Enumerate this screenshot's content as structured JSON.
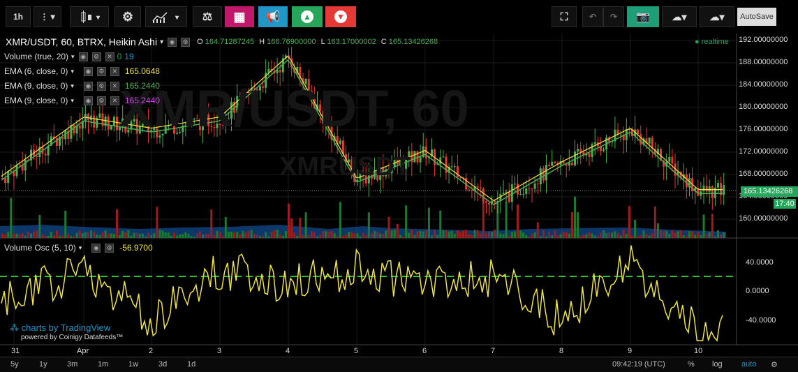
{
  "toolbar": {
    "interval": "1h",
    "autosave": "AutoSave",
    "colors": {
      "pink": "#c2186b",
      "blue": "#2196c9",
      "green": "#26a65b",
      "red": "#e53935",
      "snapshot": "#1e9e78"
    }
  },
  "legend": {
    "symbol": "XMR/USDT, 60, BTRX, Heikin Ashi",
    "o_label": "O",
    "o": "164.71287245",
    "h_label": "H",
    "h": "166.76900000",
    "l_label": "L",
    "l": "163.17000002",
    "c_label": "C",
    "c": "165.13426268",
    "realtime": "realtime",
    "volume": {
      "label": "Volume (true, 20)",
      "v1": "0",
      "v2": "19"
    },
    "ema1": {
      "label": "EMA (6, close, 0)",
      "value": "165.0648",
      "color": "#f0e442"
    },
    "ema2": {
      "label": "EMA (9, close, 0)",
      "value": "165.2440",
      "color": "#4caf50"
    },
    "ema3": {
      "label": "EMA (9, close, 0)",
      "value": "165.2440",
      "color": "#e040fb"
    },
    "osc": {
      "label": "Volume Osc (5, 10)",
      "value": "-56.9700",
      "color": "#f0e442"
    }
  },
  "watermark": {
    "big": "XMR/USDT, 60",
    "small": "XMRUSDT"
  },
  "y_axis": [
    "192.00000000",
    "188.00000000",
    "184.00000000",
    "180.00000000",
    "176.00000000",
    "172.00000000",
    "168.00000000",
    "164.00000000",
    "160.00000000"
  ],
  "current_price": "165.13426268",
  "countdown": "17:40",
  "osc_axis": [
    "40.0000",
    "0.0000",
    "-40.0000"
  ],
  "x_axis": [
    "31",
    "Apr",
    "2",
    "3",
    "4",
    "5",
    "6",
    "7",
    "8",
    "9",
    "10"
  ],
  "branding": {
    "line1": "charts by TradingView",
    "line2": "powered by Coinigy Datafeeds™"
  },
  "ranges": [
    "5y",
    "1y",
    "3m",
    "1m",
    "1w",
    "3d",
    "1d"
  ],
  "footer": {
    "time": "09:42:19 (UTC)",
    "pct": "%",
    "log": "log",
    "auto": "auto"
  },
  "chart_data": {
    "type": "line",
    "title": "XMR/USDT, 60, BTRX, Heikin Ashi",
    "x": [
      "31",
      "Apr",
      "2",
      "3",
      "4",
      "5",
      "6",
      "7",
      "8",
      "9",
      "10"
    ],
    "series": [
      {
        "name": "EMA (6, close, 0)",
        "values": [
          169,
          178,
          176,
          178,
          189,
          167,
          172,
          163,
          170,
          176,
          165
        ]
      },
      {
        "name": "Volume Osc (5, 10)",
        "values": [
          -10,
          30,
          -40,
          30,
          10,
          30,
          10,
          20,
          -40,
          40,
          -57
        ]
      }
    ],
    "ylim": [
      158,
      194
    ]
  }
}
